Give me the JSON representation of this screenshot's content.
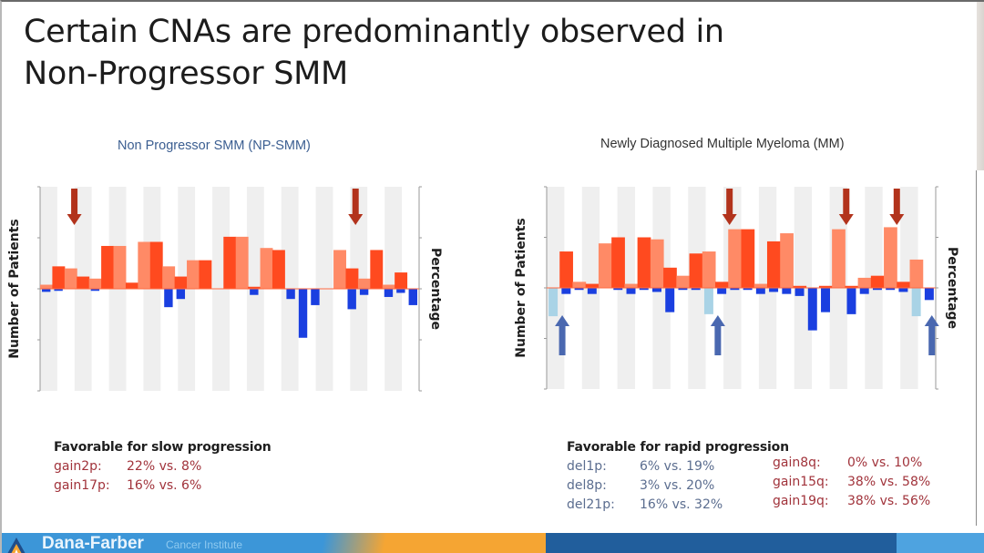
{
  "slide": {
    "title_line1": "Certain CNAs are predominantly observed in",
    "title_line2": "Non-Progressor SMM"
  },
  "chart_data": [
    {
      "type": "bar",
      "title": "Non Progressor SMM (NP-SMM)",
      "ylabel": "Number of Patients",
      "y2label": "Percentage",
      "y2lim": [
        -100,
        100
      ],
      "x": "genomic position (chromosomes 1-22)",
      "colors": {
        "gain": "#ff4a1f",
        "gain_light": "#ff8a66",
        "loss": "#1a3fe0",
        "loss_light": "#a9d3e6",
        "arrow_down": "#b2331c"
      },
      "series": [
        {
          "name": "gain",
          "values": [
            4,
            22,
            20,
            12,
            10,
            42,
            42,
            6,
            46,
            46,
            22,
            12,
            28,
            28,
            0,
            51,
            51,
            2,
            40,
            38,
            0,
            0,
            0,
            0,
            38,
            20,
            10,
            38,
            4,
            16,
            0
          ]
        },
        {
          "name": "loss",
          "values": [
            -3,
            -2,
            0,
            0,
            -2,
            0,
            0,
            0,
            0,
            0,
            -18,
            -10,
            0,
            0,
            0,
            0,
            0,
            -6,
            0,
            0,
            -10,
            -48,
            -16,
            0,
            0,
            -20,
            -6,
            0,
            -8,
            -4,
            -16
          ]
        }
      ],
      "annotations": [
        "arrow-down at 2p",
        "arrow-down at 17p"
      ]
    },
    {
      "type": "bar",
      "title": "Newly Diagnosed Multiple Myeloma (MM)",
      "ylabel": "Number of Patients",
      "y2label": "Percentage",
      "y2lim": [
        -100,
        100
      ],
      "x": "genomic position (chromosomes 1-22)",
      "colors": {
        "gain": "#ff4a1f",
        "gain_light": "#ff8a66",
        "loss": "#1a3fe0",
        "loss_light": "#a9d3e6",
        "arrow_down": "#b2331c",
        "arrow_up": "#4a68b0"
      },
      "series": [
        {
          "name": "gain",
          "values": [
            0,
            36,
            6,
            4,
            44,
            50,
            4,
            50,
            48,
            20,
            12,
            34,
            36,
            6,
            58,
            58,
            4,
            46,
            54,
            2,
            0,
            2,
            58,
            2,
            10,
            12,
            60,
            6,
            28,
            0
          ]
        },
        {
          "name": "loss",
          "values": [
            -28,
            -6,
            -2,
            -6,
            0,
            -2,
            -6,
            -2,
            -4,
            -24,
            -2,
            -2,
            -26,
            -6,
            -2,
            -2,
            -6,
            -4,
            -6,
            -8,
            -42,
            -24,
            0,
            -26,
            -6,
            -2,
            -2,
            -4,
            -28,
            -12
          ]
        }
      ],
      "annotations": [
        "arrow-up at 1p",
        "arrow-down at 8q",
        "arrow-up at 8p",
        "arrow-down at 15q",
        "arrow-down at 19q",
        "arrow-up at 21p"
      ]
    }
  ],
  "notes_left": {
    "heading": "Favorable for slow progression",
    "rows": [
      {
        "key": "gain2p:",
        "value": "22% vs. 8%"
      },
      {
        "key": "gain17p:",
        "value": "16% vs. 6%"
      }
    ]
  },
  "notes_right": {
    "heading": "Favorable for rapid progression",
    "dels": [
      {
        "key": "del1p:",
        "value": "6% vs. 19%"
      },
      {
        "key": "del8p:",
        "value": "3% vs. 20%"
      },
      {
        "key": "del21p:",
        "value": "16% vs. 32%"
      }
    ],
    "gains": [
      {
        "key": "gain8q:",
        "value": "0% vs. 10%"
      },
      {
        "key": "gain15q:",
        "value": "38% vs. 58%"
      },
      {
        "key": "gain19q:",
        "value": "38% vs. 56%"
      }
    ]
  },
  "footer": {
    "brand": "Dana-Farber",
    "brand_sub": "Cancer Institute",
    "colors": {
      "blue": "#3c96d8",
      "orange": "#f5a533",
      "navy": "#215e9c"
    }
  }
}
